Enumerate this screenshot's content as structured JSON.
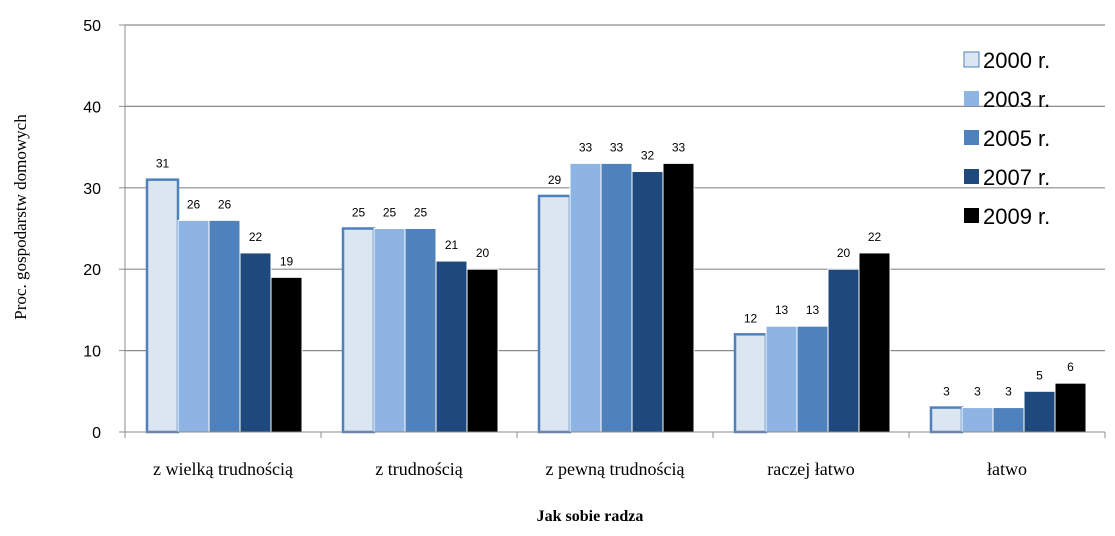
{
  "chart_data": {
    "type": "bar",
    "title": "",
    "xlabel": "Jak sobie radza",
    "ylabel": "Proc.  gospodarstw domowych",
    "categories": [
      "z wielką trudnością",
      "z trudnością",
      "z pewną trudnością",
      "raczej łatwo",
      "łatwo"
    ],
    "ylim": [
      0,
      50
    ],
    "yticks": [
      0,
      10,
      20,
      30,
      40,
      50
    ],
    "grid": true,
    "legend_position": "top-right",
    "series": [
      {
        "name": "2000 r.",
        "color": "#dce6f2",
        "values": [
          31,
          25,
          29,
          12,
          3
        ]
      },
      {
        "name": "2003 r.",
        "color": "#8eb4e3",
        "values": [
          26,
          25,
          33,
          13,
          3
        ]
      },
      {
        "name": "2005 r.",
        "color": "#4f81bd",
        "values": [
          26,
          25,
          33,
          13,
          3
        ]
      },
      {
        "name": "2007 r.",
        "color": "#1f497d",
        "values": [
          22,
          21,
          32,
          20,
          5
        ]
      },
      {
        "name": "2009 r.",
        "color": "#000000",
        "values": [
          19,
          20,
          33,
          22,
          6
        ]
      }
    ]
  }
}
